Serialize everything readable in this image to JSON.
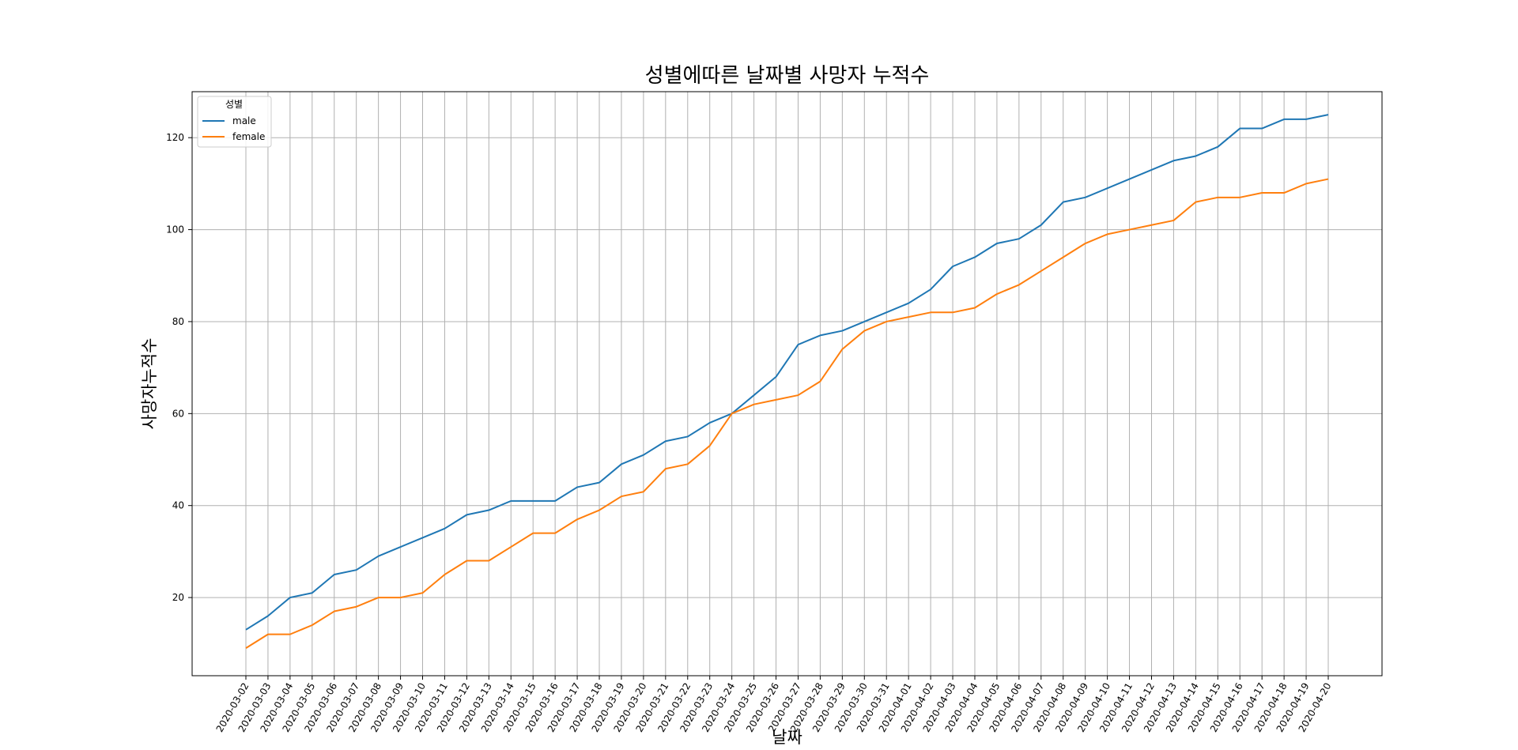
{
  "chart_data": {
    "type": "line",
    "title": "성별에따른 날짜별 사망자 누적수",
    "xlabel": "날짜",
    "ylabel": "사망자누적수",
    "x": [
      "2020-03-02",
      "2020-03-03",
      "2020-03-04",
      "2020-03-05",
      "2020-03-06",
      "2020-03-07",
      "2020-03-08",
      "2020-03-09",
      "2020-03-10",
      "2020-03-11",
      "2020-03-12",
      "2020-03-13",
      "2020-03-14",
      "2020-03-15",
      "2020-03-16",
      "2020-03-17",
      "2020-03-18",
      "2020-03-19",
      "2020-03-20",
      "2020-03-21",
      "2020-03-22",
      "2020-03-23",
      "2020-03-24",
      "2020-03-25",
      "2020-03-26",
      "2020-03-27",
      "2020-03-28",
      "2020-03-29",
      "2020-03-30",
      "2020-03-31",
      "2020-04-01",
      "2020-04-02",
      "2020-04-03",
      "2020-04-04",
      "2020-04-05",
      "2020-04-06",
      "2020-04-07",
      "2020-04-08",
      "2020-04-09",
      "2020-04-10",
      "2020-04-11",
      "2020-04-12",
      "2020-04-13",
      "2020-04-14",
      "2020-04-15",
      "2020-04-16",
      "2020-04-17",
      "2020-04-18",
      "2020-04-19",
      "2020-04-20"
    ],
    "series": [
      {
        "name": "male",
        "color": "#1f77b4",
        "values": [
          13,
          16,
          20,
          21,
          25,
          26,
          29,
          31,
          33,
          35,
          38,
          39,
          41,
          41,
          41,
          44,
          45,
          49,
          51,
          54,
          55,
          58,
          60,
          64,
          68,
          75,
          77,
          78,
          80,
          82,
          84,
          87,
          92,
          94,
          97,
          98,
          101,
          106,
          107,
          109,
          111,
          113,
          115,
          116,
          118,
          122,
          122,
          124,
          124,
          125
        ]
      },
      {
        "name": "female",
        "color": "#ff7f0e",
        "values": [
          9,
          12,
          12,
          14,
          17,
          18,
          20,
          20,
          21,
          25,
          28,
          28,
          31,
          34,
          34,
          37,
          39,
          42,
          43,
          48,
          49,
          53,
          60,
          62,
          63,
          64,
          67,
          74,
          78,
          80,
          81,
          82,
          82,
          83,
          86,
          88,
          91,
          94,
          97,
          99,
          100,
          101,
          102,
          106,
          107,
          107,
          108,
          108,
          110,
          111
        ]
      }
    ],
    "ylim": [
      3,
      130
    ],
    "yticks": [
      20,
      40,
      60,
      80,
      100,
      120
    ],
    "grid": true,
    "legend": {
      "title": "성별",
      "placement": "top-left"
    }
  }
}
